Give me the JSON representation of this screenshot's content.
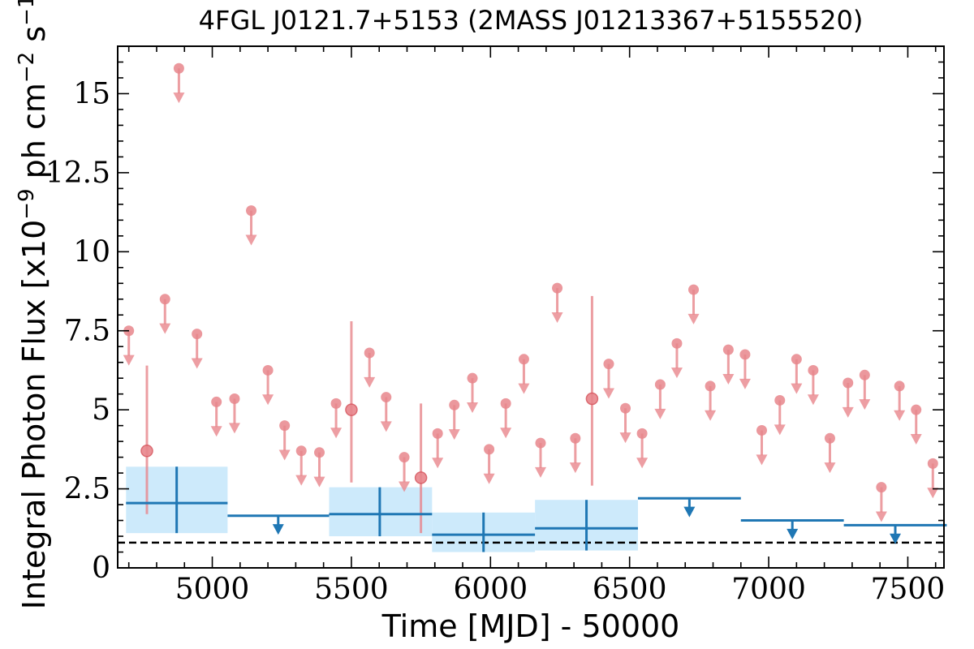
{
  "chart_data": {
    "type": "scatter",
    "title": "4FGL J0121.7+5153 (2MASS J01213367+5155520)",
    "xlabel": "Time [MJD] - 50000",
    "ylabel": "Integral Photon Flux [x10^-9 ph cm^-2 s^-1]",
    "xlim": [
      4660,
      7630
    ],
    "ylim": [
      0,
      16.5
    ],
    "xticks": [
      "5000",
      "5500",
      "6000",
      "6500",
      "7000",
      "7500"
    ],
    "yticks": [
      "0",
      "2.5",
      "5",
      "7.5",
      "10",
      "12.5",
      "15"
    ],
    "baseline": 0.8,
    "colors": {
      "fine": "#e8868c",
      "coarse": "#1f77b4",
      "coarse_band": "#cdeafb"
    },
    "series": [
      {
        "points": [
          {
            "x": 4700,
            "y": 7.5,
            "ul": true
          },
          {
            "x": 4765,
            "y": 3.7,
            "lo": 1.7,
            "hi": 6.4
          },
          {
            "x": 4830,
            "y": 8.5,
            "ul": true
          },
          {
            "x": 4880,
            "y": 15.8,
            "ul": true
          },
          {
            "x": 4945,
            "y": 7.4,
            "ul": true
          },
          {
            "x": 5015,
            "y": 5.25,
            "ul": true
          },
          {
            "x": 5080,
            "y": 5.35,
            "ul": true
          },
          {
            "x": 5140,
            "y": 11.3,
            "ul": true
          },
          {
            "x": 5200,
            "y": 6.25,
            "ul": true
          },
          {
            "x": 5260,
            "y": 4.5,
            "ul": true
          },
          {
            "x": 5320,
            "y": 3.7,
            "ul": true
          },
          {
            "x": 5385,
            "y": 3.65,
            "ul": true
          },
          {
            "x": 5445,
            "y": 5.2,
            "ul": true
          },
          {
            "x": 5500,
            "y": 5.0,
            "lo": 2.7,
            "hi": 7.8
          },
          {
            "x": 5565,
            "y": 6.8,
            "ul": true
          },
          {
            "x": 5625,
            "y": 5.4,
            "ul": true
          },
          {
            "x": 5690,
            "y": 3.5,
            "ul": true
          },
          {
            "x": 5750,
            "y": 2.85,
            "lo": 1.1,
            "hi": 5.2
          },
          {
            "x": 5810,
            "y": 4.25,
            "ul": true
          },
          {
            "x": 5870,
            "y": 5.15,
            "ul": true
          },
          {
            "x": 5935,
            "y": 6.0,
            "ul": true
          },
          {
            "x": 5995,
            "y": 3.75,
            "ul": true
          },
          {
            "x": 6055,
            "y": 5.2,
            "ul": true
          },
          {
            "x": 6120,
            "y": 6.6,
            "ul": true
          },
          {
            "x": 6180,
            "y": 3.95,
            "ul": true
          },
          {
            "x": 6240,
            "y": 8.85,
            "ul": true
          },
          {
            "x": 6305,
            "y": 4.1,
            "ul": true
          },
          {
            "x": 6365,
            "y": 5.35,
            "lo": 2.6,
            "hi": 8.6
          },
          {
            "x": 6425,
            "y": 6.45,
            "ul": true
          },
          {
            "x": 6485,
            "y": 5.05,
            "ul": true
          },
          {
            "x": 6545,
            "y": 4.25,
            "ul": true
          },
          {
            "x": 6610,
            "y": 5.8,
            "ul": true
          },
          {
            "x": 6670,
            "y": 7.1,
            "ul": true
          },
          {
            "x": 6730,
            "y": 8.8,
            "ul": true
          },
          {
            "x": 6790,
            "y": 5.75,
            "ul": true
          },
          {
            "x": 6855,
            "y": 6.9,
            "ul": true
          },
          {
            "x": 6915,
            "y": 6.75,
            "ul": true
          },
          {
            "x": 6975,
            "y": 4.35,
            "ul": true
          },
          {
            "x": 7040,
            "y": 5.3,
            "ul": true
          },
          {
            "x": 7100,
            "y": 6.6,
            "ul": true
          },
          {
            "x": 7160,
            "y": 6.25,
            "ul": true
          },
          {
            "x": 7220,
            "y": 4.1,
            "ul": true
          },
          {
            "x": 7285,
            "y": 5.85,
            "ul": true
          },
          {
            "x": 7345,
            "y": 6.1,
            "ul": true
          },
          {
            "x": 7405,
            "y": 2.55,
            "ul": true
          },
          {
            "x": 7470,
            "y": 5.75,
            "ul": true
          },
          {
            "x": 7530,
            "y": 5.0,
            "ul": true
          },
          {
            "x": 7590,
            "y": 3.3,
            "ul": true
          }
        ]
      },
      {
        "bins": [
          {
            "x0": 4690,
            "x1": 5055,
            "xc": 4872,
            "y": 2.05,
            "lo": 1.1,
            "hi": 3.2
          },
          {
            "x0": 5055,
            "x1": 5420,
            "xc": 5237,
            "y": 1.65,
            "ul": true
          },
          {
            "x0": 5420,
            "x1": 5790,
            "xc": 5602,
            "y": 1.7,
            "lo": 1.0,
            "hi": 2.55
          },
          {
            "x0": 5790,
            "x1": 6160,
            "xc": 5975,
            "y": 1.05,
            "lo": 0.5,
            "hi": 1.75
          },
          {
            "x0": 6160,
            "x1": 6530,
            "xc": 6345,
            "y": 1.25,
            "lo": 0.55,
            "hi": 2.15
          },
          {
            "x0": 6530,
            "x1": 6900,
            "xc": 6715,
            "y": 2.2,
            "ul": true
          },
          {
            "x0": 6900,
            "x1": 7270,
            "xc": 7085,
            "y": 1.5,
            "ul": true
          },
          {
            "x0": 7270,
            "x1": 7640,
            "xc": 7455,
            "y": 1.35,
            "ul": true
          }
        ]
      }
    ]
  }
}
